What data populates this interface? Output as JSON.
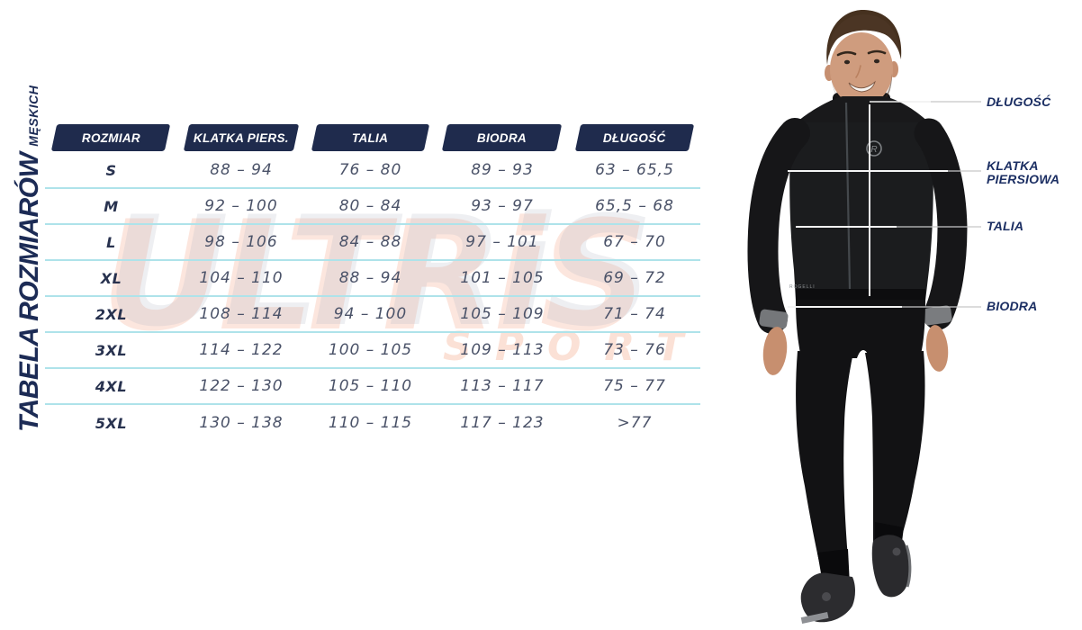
{
  "title": {
    "main": "TABELA ROZMIARÓW",
    "sub": "MĘSKICH"
  },
  "watermark": {
    "line1": "ULTRiS",
    "line2": "SPORT"
  },
  "table": {
    "columns": [
      "ROZMIAR",
      "KLATKA PIERS.",
      "TALIA",
      "BIODRA",
      "DŁUGOŚĆ"
    ],
    "rows": [
      {
        "size": "S",
        "chest": "88 – 94",
        "waist": "76 – 80",
        "hips": "89 – 93",
        "length": "63 – 65,5"
      },
      {
        "size": "M",
        "chest": "92 – 100",
        "waist": "80 – 84",
        "hips": "93 – 97",
        "length": "65,5 – 68"
      },
      {
        "size": "L",
        "chest": "98 – 106",
        "waist": "84 – 88",
        "hips": "97 – 101",
        "length": "67 – 70"
      },
      {
        "size": "XL",
        "chest": "104 – 110",
        "waist": "88 – 94",
        "hips": "101 – 105",
        "length": "69 – 72"
      },
      {
        "size": "2XL",
        "chest": "108 – 114",
        "waist": "94 – 100",
        "hips": "105 – 109",
        "length": "71 – 74"
      },
      {
        "size": "3XL",
        "chest": "114 – 122",
        "waist": "100 – 105",
        "hips": "109 – 113",
        "length": "73 – 76"
      },
      {
        "size": "4XL",
        "chest": "122 – 130",
        "waist": "105 – 110",
        "hips": "113 – 117",
        "length": "75 – 77"
      },
      {
        "size": "5XL",
        "chest": "130 – 138",
        "waist": "110 – 115",
        "hips": "117 – 123",
        "length": ">77"
      }
    ]
  },
  "figure": {
    "labels": {
      "length": "DŁUGOŚĆ",
      "chest_line1": "KLATKA",
      "chest_line2": "PIERSIOWA",
      "waist": "TALIA",
      "hips": "BIODRA"
    },
    "jersey_logo": "R",
    "hem_text": "ROGELLI"
  },
  "colors": {
    "badge_navy": "#1f2b4d",
    "row_divider": "#aee3ea",
    "data_text": "#4a5268",
    "label_navy": "#1c2f63",
    "watermark_gray": "#b0b6c2",
    "watermark_orange": "#ee8258"
  }
}
